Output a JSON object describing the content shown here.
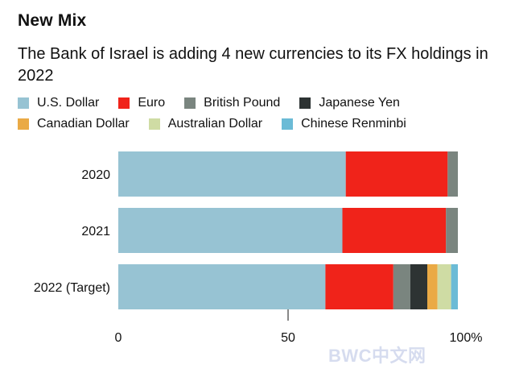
{
  "header": {
    "title": "New Mix",
    "subtitle": "The Bank of Israel is adding 4 new currencies to its FX holdings in 2022"
  },
  "watermark": "BWC中文网",
  "colors": {
    "U.S. Dollar": "#97c3d3",
    "Euro": "#f0231a",
    "British Pound": "#7a857f",
    "Japanese Yen": "#2d3333",
    "Canadian Dollar": "#eaaa45",
    "Australian Dollar": "#cfdca4",
    "Chinese Renminbi": "#6bbbd6"
  },
  "chart_data": {
    "type": "bar",
    "orientation": "horizontal",
    "stacked": true,
    "categories": [
      "2020",
      "2021",
      "2022 (Target)"
    ],
    "series": [
      {
        "name": "U.S. Dollar",
        "values": [
          67,
          66,
          61
        ]
      },
      {
        "name": "Euro",
        "values": [
          30,
          30.5,
          20
        ]
      },
      {
        "name": "British Pound",
        "values": [
          3,
          3.5,
          5
        ]
      },
      {
        "name": "Japanese Yen",
        "values": [
          0,
          0,
          5
        ]
      },
      {
        "name": "Canadian Dollar",
        "values": [
          0,
          0,
          3
        ]
      },
      {
        "name": "Australian Dollar",
        "values": [
          0,
          0,
          4
        ]
      },
      {
        "name": "Chinese Renminbi",
        "values": [
          0,
          0,
          2
        ]
      }
    ],
    "xlim": [
      0,
      100
    ],
    "xticks": [
      "0",
      "50",
      "100%"
    ],
    "xtick_values": [
      0,
      50,
      100
    ],
    "legend_position": "top-left",
    "grid": false
  }
}
